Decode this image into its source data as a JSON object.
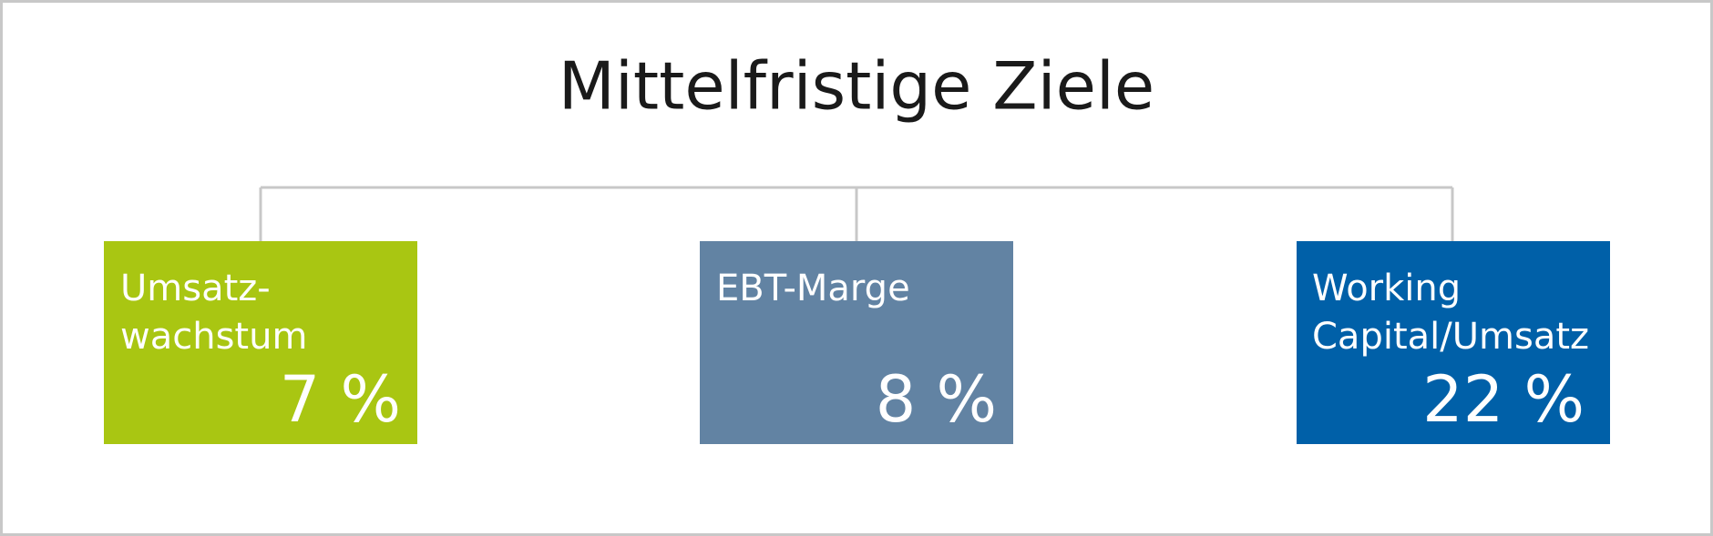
{
  "title": "Mittelfristige Ziele",
  "boxes": [
    {
      "label": [
        "Umsatz-",
        "wachstum"
      ],
      "value": "7 %"
    },
    {
      "label": [
        "EBT-Marge"
      ],
      "value": "8 %"
    },
    {
      "label": [
        "Working",
        "Capital/Umsatz"
      ],
      "value": "22 %"
    }
  ]
}
